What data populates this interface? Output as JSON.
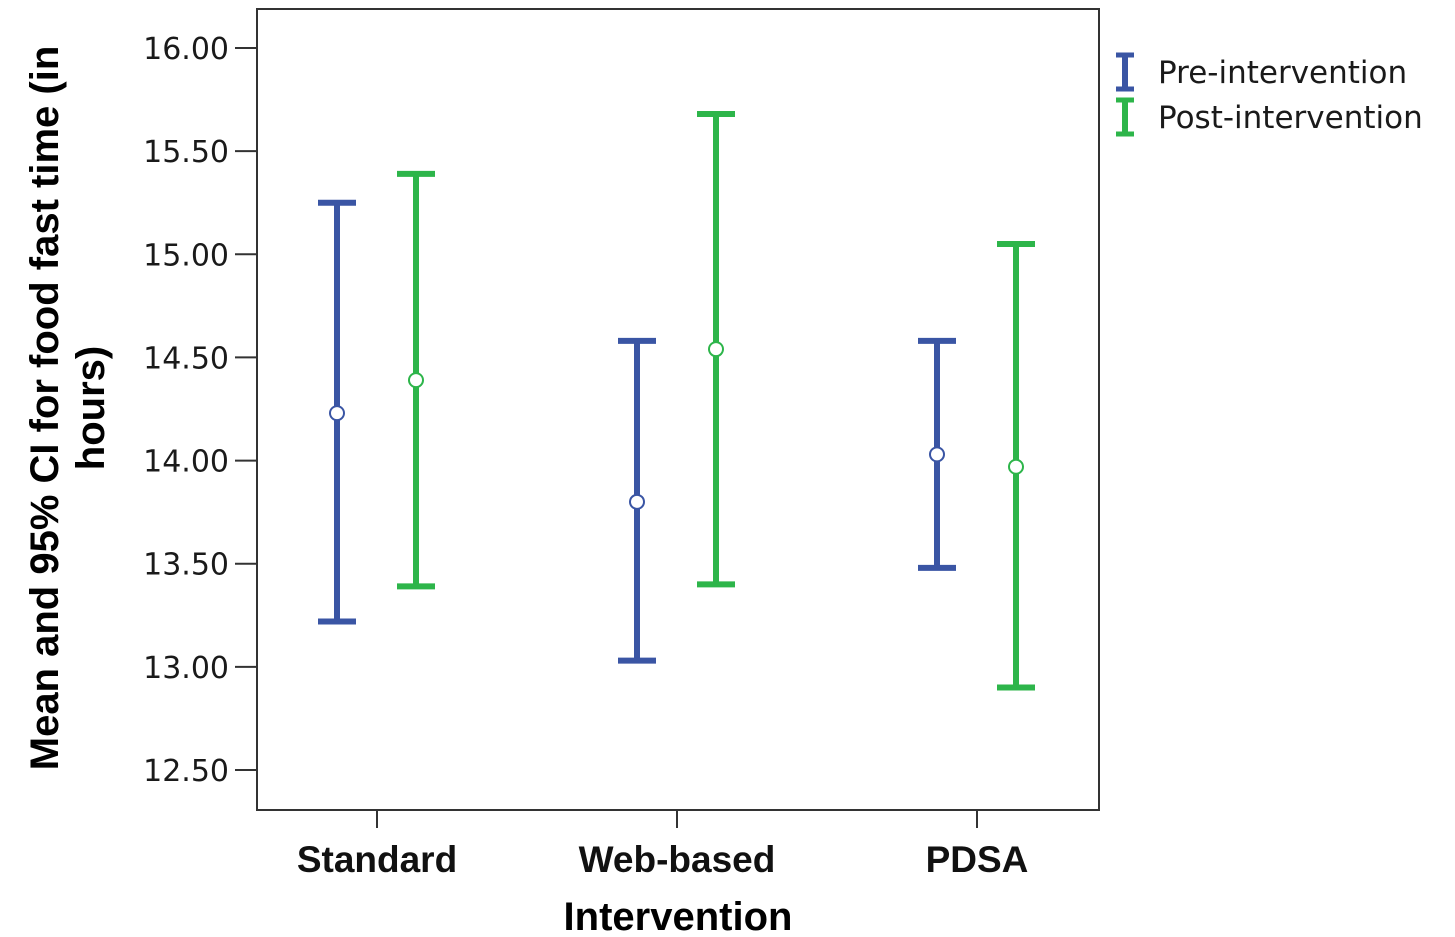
{
  "chart_data": {
    "type": "errorbar",
    "categories": [
      "Standard",
      "Web-based",
      "PDSA"
    ],
    "xlabel": "Intervention",
    "ylabel_line1": "Mean and 95% CI for food fast time (in",
    "ylabel_line2": "hours)",
    "ylim": [
      12.3,
      16.2
    ],
    "yticks": [
      16.0,
      15.5,
      15.0,
      14.5,
      14.0,
      13.5,
      13.0,
      12.5
    ],
    "ytick_labels": [
      "16.00",
      "15.50",
      "15.00",
      "14.50",
      "14.00",
      "13.50",
      "13.00",
      "12.50"
    ],
    "grid": false,
    "legend_position": "right",
    "series": [
      {
        "name": "Pre-intervention",
        "color": "#3a55a4",
        "mean": [
          14.23,
          13.8,
          14.03
        ],
        "lower": [
          13.22,
          13.03,
          13.48
        ],
        "upper": [
          15.25,
          14.58,
          14.58
        ]
      },
      {
        "name": "Post-intervention",
        "color": "#2db54a",
        "mean": [
          14.39,
          14.54,
          13.97
        ],
        "lower": [
          13.39,
          13.4,
          12.9
        ],
        "upper": [
          15.39,
          15.68,
          15.05
        ]
      }
    ]
  }
}
